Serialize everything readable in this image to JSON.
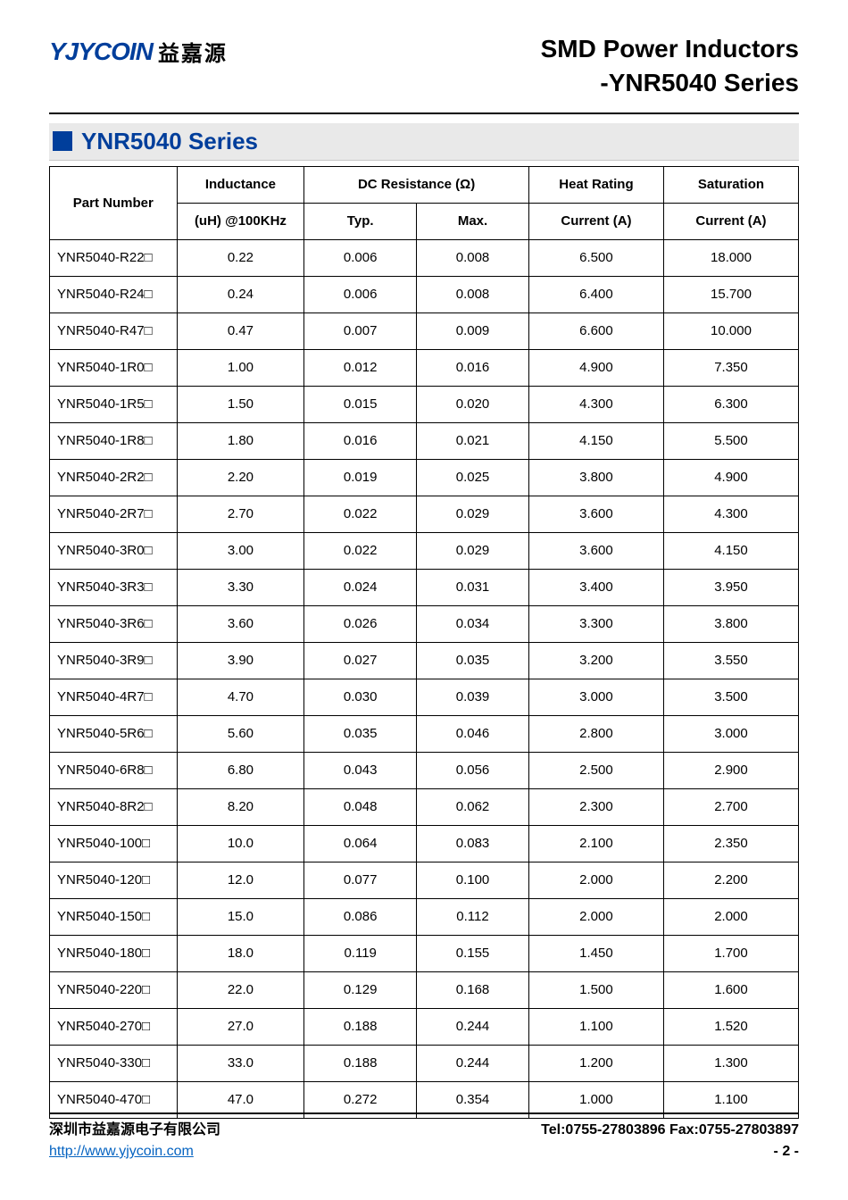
{
  "header": {
    "logo_en": "YJYCOIN",
    "logo_cn": "益嘉源",
    "title_line1": "SMD Power Inductors",
    "title_line2": "-YNR5040 Series"
  },
  "section": {
    "title": "YNR5040 Series"
  },
  "table": {
    "headers": {
      "part_number": "Part Number",
      "inductance_top": "Inductance",
      "inductance_bot": "(uH) @100KHz",
      "dcr": "DC Resistance (Ω)",
      "typ": "Typ.",
      "max": "Max.",
      "heat_top": "Heat Rating",
      "heat_bot": "Current (A)",
      "sat_top": "Saturation",
      "sat_bot": "Current (A)"
    },
    "rows": [
      {
        "pn": "YNR5040-R22□",
        "ind": "0.22",
        "typ": "0.006",
        "max": "0.008",
        "hr": "6.500",
        "sat": "18.000"
      },
      {
        "pn": "YNR5040-R24□",
        "ind": "0.24",
        "typ": "0.006",
        "max": "0.008",
        "hr": "6.400",
        "sat": "15.700"
      },
      {
        "pn": "YNR5040-R47□",
        "ind": "0.47",
        "typ": "0.007",
        "max": "0.009",
        "hr": "6.600",
        "sat": "10.000"
      },
      {
        "pn": "YNR5040-1R0□",
        "ind": "1.00",
        "typ": "0.012",
        "max": "0.016",
        "hr": "4.900",
        "sat": "7.350"
      },
      {
        "pn": "YNR5040-1R5□",
        "ind": "1.50",
        "typ": "0.015",
        "max": "0.020",
        "hr": "4.300",
        "sat": "6.300"
      },
      {
        "pn": "YNR5040-1R8□",
        "ind": "1.80",
        "typ": "0.016",
        "max": "0.021",
        "hr": "4.150",
        "sat": "5.500"
      },
      {
        "pn": "YNR5040-2R2□",
        "ind": "2.20",
        "typ": "0.019",
        "max": "0.025",
        "hr": "3.800",
        "sat": "4.900"
      },
      {
        "pn": "YNR5040-2R7□",
        "ind": "2.70",
        "typ": "0.022",
        "max": "0.029",
        "hr": "3.600",
        "sat": "4.300"
      },
      {
        "pn": "YNR5040-3R0□",
        "ind": "3.00",
        "typ": "0.022",
        "max": "0.029",
        "hr": "3.600",
        "sat": "4.150"
      },
      {
        "pn": "YNR5040-3R3□",
        "ind": "3.30",
        "typ": "0.024",
        "max": "0.031",
        "hr": "3.400",
        "sat": "3.950"
      },
      {
        "pn": "YNR5040-3R6□",
        "ind": "3.60",
        "typ": "0.026",
        "max": "0.034",
        "hr": "3.300",
        "sat": "3.800"
      },
      {
        "pn": "YNR5040-3R9□",
        "ind": "3.90",
        "typ": "0.027",
        "max": "0.035",
        "hr": "3.200",
        "sat": "3.550"
      },
      {
        "pn": "YNR5040-4R7□",
        "ind": "4.70",
        "typ": "0.030",
        "max": "0.039",
        "hr": "3.000",
        "sat": "3.500"
      },
      {
        "pn": "YNR5040-5R6□",
        "ind": "5.60",
        "typ": "0.035",
        "max": "0.046",
        "hr": "2.800",
        "sat": "3.000"
      },
      {
        "pn": "YNR5040-6R8□",
        "ind": "6.80",
        "typ": "0.043",
        "max": "0.056",
        "hr": "2.500",
        "sat": "2.900"
      },
      {
        "pn": "YNR5040-8R2□",
        "ind": "8.20",
        "typ": "0.048",
        "max": "0.062",
        "hr": "2.300",
        "sat": "2.700"
      },
      {
        "pn": "YNR5040-100□",
        "ind": "10.0",
        "typ": "0.064",
        "max": "0.083",
        "hr": "2.100",
        "sat": "2.350"
      },
      {
        "pn": "YNR5040-120□",
        "ind": "12.0",
        "typ": "0.077",
        "max": "0.100",
        "hr": "2.000",
        "sat": "2.200"
      },
      {
        "pn": "YNR5040-150□",
        "ind": "15.0",
        "typ": "0.086",
        "max": "0.112",
        "hr": "2.000",
        "sat": "2.000"
      },
      {
        "pn": "YNR5040-180□",
        "ind": "18.0",
        "typ": "0.119",
        "max": "0.155",
        "hr": "1.450",
        "sat": "1.700"
      },
      {
        "pn": "YNR5040-220□",
        "ind": "22.0",
        "typ": "0.129",
        "max": "0.168",
        "hr": "1.500",
        "sat": "1.600"
      },
      {
        "pn": "YNR5040-270□",
        "ind": "27.0",
        "typ": "0.188",
        "max": "0.244",
        "hr": "1.100",
        "sat": "1.520"
      },
      {
        "pn": "YNR5040-330□",
        "ind": "33.0",
        "typ": "0.188",
        "max": "0.244",
        "hr": "1.200",
        "sat": "1.300"
      },
      {
        "pn": "YNR5040-470□",
        "ind": "47.0",
        "typ": "0.272",
        "max": "0.354",
        "hr": "1.000",
        "sat": "1.100"
      }
    ]
  },
  "footer": {
    "company": "深圳市益嘉源电子有限公司",
    "contact": "Tel:0755-27803896   Fax:0755-27803897",
    "url": "http://www.yjycoin.com",
    "page": "- 2 -"
  },
  "colors": {
    "brand_blue": "#003e9b",
    "section_bg": "#e9e9e9",
    "link": "#0563c1"
  }
}
